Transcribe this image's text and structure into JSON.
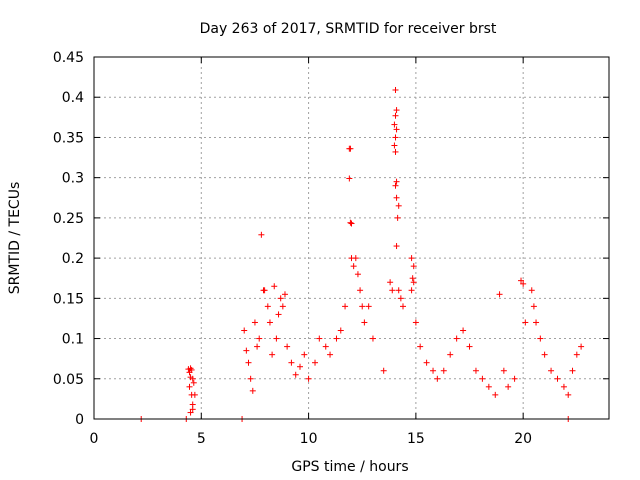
{
  "chart_data": {
    "type": "scatter",
    "title": "Day 263 of 2017, SRMTID for receiver brst",
    "xlabel": "GPS time / hours",
    "ylabel": "SRMTID / TECUs",
    "xlim": [
      0,
      24
    ],
    "ylim": [
      0,
      0.45
    ],
    "x_ticks": [
      0,
      5,
      10,
      15,
      20
    ],
    "y_ticks": [
      0,
      0.05,
      0.1,
      0.15,
      0.2,
      0.25,
      0.3,
      0.35,
      0.4,
      0.45
    ],
    "x_tick_labels": [
      "0",
      "5",
      "10",
      "15",
      "20"
    ],
    "y_tick_labels": [
      "0",
      "0.05",
      "0.1",
      "0.15",
      "0.2",
      "0.25",
      "0.3",
      "0.35",
      "0.4",
      "0.45"
    ],
    "grid": true,
    "marker": "+",
    "color": "#ff0000",
    "series": [
      {
        "points": [
          [
            2.2,
            0.0
          ],
          [
            4.3,
            0.0
          ],
          [
            6.9,
            0.0
          ],
          [
            22.1,
            0.0
          ],
          [
            4.4,
            0.062
          ],
          [
            4.45,
            0.058
          ],
          [
            4.5,
            0.063
          ],
          [
            4.55,
            0.061
          ],
          [
            4.6,
            0.05
          ],
          [
            4.65,
            0.045
          ],
          [
            4.7,
            0.03
          ],
          [
            4.45,
            0.04
          ],
          [
            4.5,
            0.052
          ],
          [
            4.55,
            0.03
          ],
          [
            4.6,
            0.018
          ],
          [
            4.5,
            0.008
          ],
          [
            4.6,
            0.012
          ],
          [
            7.0,
            0.11
          ],
          [
            7.1,
            0.085
          ],
          [
            7.2,
            0.07
          ],
          [
            7.3,
            0.05
          ],
          [
            7.4,
            0.035
          ],
          [
            7.5,
            0.12
          ],
          [
            7.6,
            0.09
          ],
          [
            7.7,
            0.1
          ],
          [
            7.8,
            0.229
          ],
          [
            7.9,
            0.16
          ],
          [
            7.95,
            0.16
          ],
          [
            8.1,
            0.14
          ],
          [
            8.2,
            0.12
          ],
          [
            8.3,
            0.08
          ],
          [
            8.4,
            0.165
          ],
          [
            8.5,
            0.1
          ],
          [
            8.6,
            0.13
          ],
          [
            8.7,
            0.15
          ],
          [
            8.8,
            0.14
          ],
          [
            8.9,
            0.155
          ],
          [
            9.0,
            0.09
          ],
          [
            9.2,
            0.07
          ],
          [
            9.4,
            0.055
          ],
          [
            9.6,
            0.065
          ],
          [
            9.8,
            0.08
          ],
          [
            10.0,
            0.05
          ],
          [
            10.3,
            0.07
          ],
          [
            10.5,
            0.1
          ],
          [
            10.8,
            0.09
          ],
          [
            11.0,
            0.08
          ],
          [
            11.3,
            0.1
          ],
          [
            11.5,
            0.11
          ],
          [
            11.7,
            0.14
          ],
          [
            11.9,
            0.336
          ],
          [
            11.95,
            0.336
          ],
          [
            11.9,
            0.299
          ],
          [
            11.95,
            0.244
          ],
          [
            12.0,
            0.243
          ],
          [
            12.0,
            0.2
          ],
          [
            12.1,
            0.19
          ],
          [
            12.2,
            0.2
          ],
          [
            12.3,
            0.18
          ],
          [
            12.4,
            0.16
          ],
          [
            12.5,
            0.14
          ],
          [
            12.6,
            0.12
          ],
          [
            12.8,
            0.14
          ],
          [
            13.0,
            0.1
          ],
          [
            13.5,
            0.06
          ],
          [
            13.8,
            0.17
          ],
          [
            13.9,
            0.16
          ],
          [
            14.05,
            0.409
          ],
          [
            14.1,
            0.384
          ],
          [
            14.05,
            0.377
          ],
          [
            14.0,
            0.366
          ],
          [
            14.1,
            0.36
          ],
          [
            14.05,
            0.35
          ],
          [
            14.0,
            0.34
          ],
          [
            14.05,
            0.332
          ],
          [
            14.1,
            0.295
          ],
          [
            14.05,
            0.29
          ],
          [
            14.1,
            0.275
          ],
          [
            14.2,
            0.265
          ],
          [
            14.15,
            0.25
          ],
          [
            14.1,
            0.215
          ],
          [
            14.2,
            0.16
          ],
          [
            14.3,
            0.15
          ],
          [
            14.4,
            0.14
          ],
          [
            14.8,
            0.2
          ],
          [
            14.9,
            0.19
          ],
          [
            14.85,
            0.175
          ],
          [
            14.9,
            0.17
          ],
          [
            14.8,
            0.16
          ],
          [
            15.0,
            0.12
          ],
          [
            15.2,
            0.09
          ],
          [
            15.5,
            0.07
          ],
          [
            15.8,
            0.06
          ],
          [
            16.0,
            0.05
          ],
          [
            16.3,
            0.06
          ],
          [
            16.6,
            0.08
          ],
          [
            16.9,
            0.1
          ],
          [
            17.2,
            0.11
          ],
          [
            17.5,
            0.09
          ],
          [
            17.8,
            0.06
          ],
          [
            18.1,
            0.05
          ],
          [
            18.4,
            0.04
          ],
          [
            18.7,
            0.03
          ],
          [
            18.9,
            0.155
          ],
          [
            19.1,
            0.06
          ],
          [
            19.3,
            0.04
          ],
          [
            19.6,
            0.05
          ],
          [
            19.9,
            0.172
          ],
          [
            20.0,
            0.168
          ],
          [
            20.1,
            0.12
          ],
          [
            20.4,
            0.16
          ],
          [
            20.5,
            0.14
          ],
          [
            20.6,
            0.12
          ],
          [
            20.8,
            0.1
          ],
          [
            21.0,
            0.08
          ],
          [
            21.3,
            0.06
          ],
          [
            21.6,
            0.05
          ],
          [
            21.9,
            0.04
          ],
          [
            22.1,
            0.03
          ],
          [
            22.3,
            0.06
          ],
          [
            22.5,
            0.08
          ],
          [
            22.7,
            0.09
          ]
        ]
      }
    ]
  }
}
